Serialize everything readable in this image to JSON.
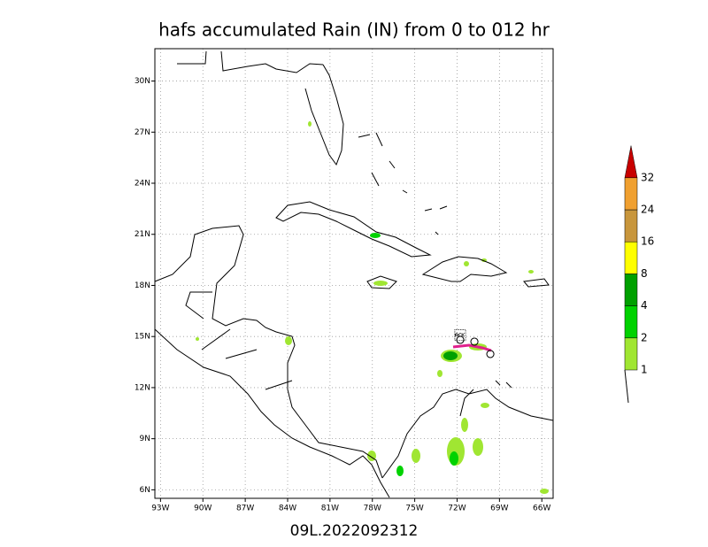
{
  "title": "hafs accumulated Rain (IN) from 0 to 012 hr",
  "label": "09L.2022092312",
  "map": {
    "lonlim": [
      -93.4,
      -65.2
    ],
    "latlim": [
      5.5,
      31.9
    ],
    "lat_ticks": [
      {
        "value": 6,
        "label": "6N"
      },
      {
        "value": 9,
        "label": "9N"
      },
      {
        "value": 12,
        "label": "12N"
      },
      {
        "value": 15,
        "label": "15N"
      },
      {
        "value": 18,
        "label": "18N"
      },
      {
        "value": 21,
        "label": "21N"
      },
      {
        "value": 24,
        "label": "24N"
      },
      {
        "value": 27,
        "label": "27N"
      },
      {
        "value": 30,
        "label": "30N"
      }
    ],
    "lon_ticks": [
      {
        "value": -93,
        "label": "93W"
      },
      {
        "value": -90,
        "label": "90W"
      },
      {
        "value": -87,
        "label": "87W"
      },
      {
        "value": -84,
        "label": "84W"
      },
      {
        "value": -81,
        "label": "81W"
      },
      {
        "value": -78,
        "label": "78W"
      },
      {
        "value": -75,
        "label": "75W"
      },
      {
        "value": -72,
        "label": "72W"
      },
      {
        "value": -69,
        "label": "69W"
      },
      {
        "value": -66,
        "label": "66W"
      }
    ],
    "grid": true
  },
  "colorbar": {
    "levels": [
      1,
      2,
      4,
      8,
      16,
      24,
      32
    ],
    "colors": [
      "#a0e632",
      "#00d200",
      "#00a000",
      "#ffff00",
      "#c8963c",
      "#f0a030",
      "#c80000"
    ]
  }
}
